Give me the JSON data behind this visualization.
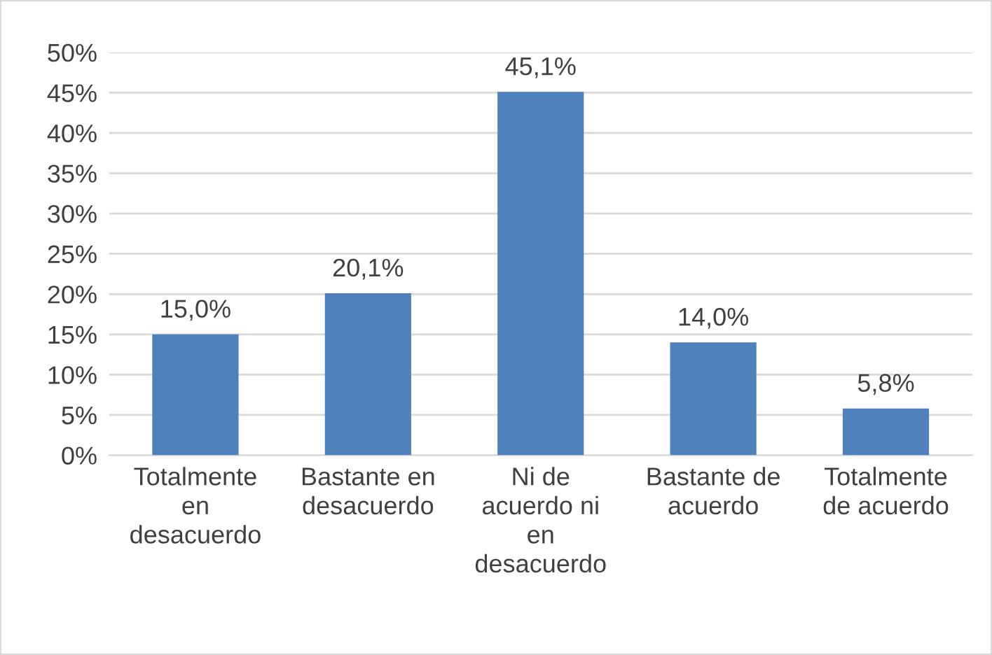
{
  "chart_data": {
    "type": "bar",
    "categories": [
      "Totalmente\nen\ndesacuerdo",
      "Bastante en\ndesacuerdo",
      "Ni de\nacuerdo ni\nen\ndesacuerdo",
      "Bastante de\nacuerdo",
      "Totalmente\nde acuerdo"
    ],
    "values": [
      15.0,
      20.1,
      45.1,
      14.0,
      5.8
    ],
    "value_labels": [
      "15,0%",
      "20,1%",
      "45,1%",
      "14,0%",
      "5,8%"
    ],
    "color": "#4f81bd",
    "ylim": [
      0,
      50
    ],
    "yticks": [
      {
        "value": 0,
        "label": "0%"
      },
      {
        "value": 5,
        "label": "5%"
      },
      {
        "value": 10,
        "label": "10%"
      },
      {
        "value": 15,
        "label": "15%"
      },
      {
        "value": 20,
        "label": "20%"
      },
      {
        "value": 25,
        "label": "25%"
      },
      {
        "value": 30,
        "label": "30%"
      },
      {
        "value": 35,
        "label": "35%"
      },
      {
        "value": 40,
        "label": "40%"
      },
      {
        "value": 45,
        "label": "45%"
      },
      {
        "value": 50,
        "label": "50%"
      }
    ],
    "grid": "y",
    "legend": false
  }
}
